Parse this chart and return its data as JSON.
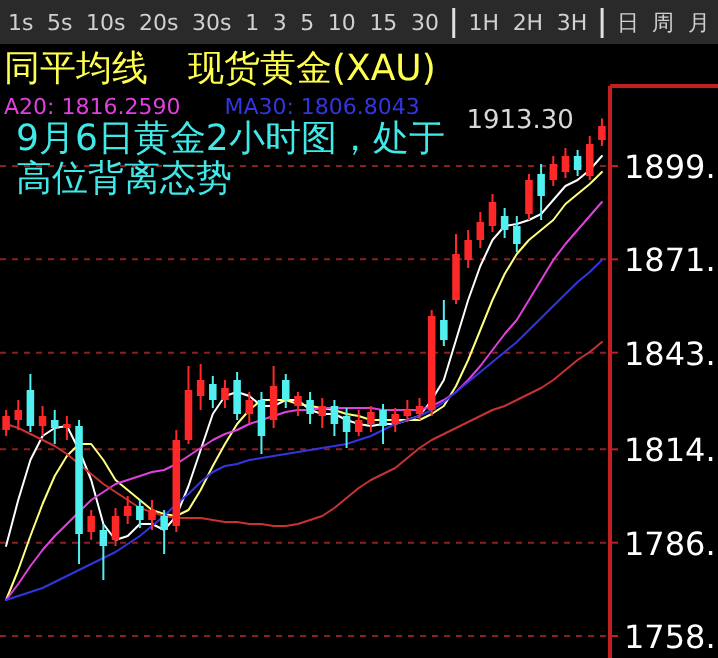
{
  "chart_data": {
    "type": "candlestick",
    "title": "同平均线",
    "subtitle": "现货黄金(XAU)",
    "categories": [
      null,
      null,
      null,
      null,
      null,
      null,
      null,
      null,
      null,
      null,
      null,
      null,
      null,
      null,
      null,
      null,
      null,
      null,
      null,
      null,
      null,
      null,
      null,
      null,
      null,
      null,
      null,
      null,
      null,
      null,
      null,
      null,
      null,
      null,
      null,
      null,
      null,
      null,
      null,
      null,
      null,
      null,
      null,
      null,
      null,
      null,
      null,
      null,
      null,
      null
    ],
    "ohlc": [
      [
        1819.8,
        1825.8,
        1818.0,
        1824.0
      ],
      [
        1822.8,
        1828.8,
        1819.8,
        1825.8
      ],
      [
        1831.8,
        1836.6,
        1819.2,
        1821.0
      ],
      [
        1821.0,
        1827.0,
        1818.0,
        1824.0
      ],
      [
        1822.8,
        1825.8,
        1815.6,
        1820.4
      ],
      [
        1820.4,
        1824.0,
        1816.8,
        1821.6
      ],
      [
        1821.0,
        1822.8,
        1779.6,
        1788.6
      ],
      [
        1789.2,
        1795.8,
        1786.8,
        1794.0
      ],
      [
        1789.8,
        1791.6,
        1774.8,
        1785.0
      ],
      [
        1786.8,
        1796.4,
        1785.0,
        1794.0
      ],
      [
        1794.0,
        1800.0,
        1791.6,
        1797.0
      ],
      [
        1797.0,
        1798.8,
        1790.4,
        1792.8
      ],
      [
        1792.8,
        1798.8,
        1789.8,
        1795.8
      ],
      [
        1794.0,
        1795.8,
        1782.6,
        1789.8
      ],
      [
        1791.0,
        1819.8,
        1789.2,
        1816.8
      ],
      [
        1816.8,
        1839.0,
        1815.6,
        1831.8
      ],
      [
        1830.0,
        1839.6,
        1825.8,
        1834.8
      ],
      [
        1833.6,
        1836.0,
        1826.4,
        1828.8
      ],
      [
        1828.8,
        1834.8,
        1826.4,
        1832.4
      ],
      [
        1834.8,
        1837.2,
        1822.8,
        1824.6
      ],
      [
        1824.6,
        1831.2,
        1821.6,
        1828.8
      ],
      [
        1828.8,
        1831.2,
        1812.6,
        1818.0
      ],
      [
        1822.8,
        1839.0,
        1820.4,
        1833.0
      ],
      [
        1834.8,
        1836.6,
        1826.4,
        1828.8
      ],
      [
        1827.0,
        1831.2,
        1824.0,
        1830.0
      ],
      [
        1828.8,
        1831.2,
        1821.6,
        1824.6
      ],
      [
        1824.0,
        1829.4,
        1820.4,
        1827.0
      ],
      [
        1827.0,
        1828.8,
        1818.0,
        1821.6
      ],
      [
        1824.0,
        1826.4,
        1814.4,
        1819.2
      ],
      [
        1819.2,
        1825.8,
        1818.0,
        1822.8
      ],
      [
        1821.6,
        1827.0,
        1819.2,
        1825.2
      ],
      [
        1825.8,
        1827.6,
        1815.6,
        1821.0
      ],
      [
        1821.6,
        1826.4,
        1819.2,
        1824.6
      ],
      [
        1824.0,
        1828.8,
        1822.2,
        1825.8
      ],
      [
        1824.6,
        1829.4,
        1822.8,
        1827.0
      ],
      [
        1825.8,
        1855.8,
        1824.0,
        1854.0
      ],
      [
        1852.8,
        1858.8,
        1845.0,
        1846.8
      ],
      [
        1858.8,
        1878.6,
        1857.6,
        1872.6
      ],
      [
        1870.8,
        1879.8,
        1868.4,
        1876.8
      ],
      [
        1876.8,
        1885.2,
        1874.4,
        1882.2
      ],
      [
        1881.0,
        1890.6,
        1879.2,
        1888.2
      ],
      [
        1884.0,
        1886.4,
        1877.4,
        1879.8
      ],
      [
        1881.0,
        1884.0,
        1873.2,
        1875.6
      ],
      [
        1884.6,
        1896.6,
        1882.8,
        1894.8
      ],
      [
        1896.6,
        1899.6,
        1882.8,
        1890.0
      ],
      [
        1894.8,
        1902.0,
        1893.0,
        1899.6
      ],
      [
        1897.2,
        1904.4,
        1895.4,
        1902.0
      ],
      [
        1902.0,
        1903.8,
        1896.0,
        1897.8
      ],
      [
        1896.0,
        1908.0,
        1894.8,
        1905.6
      ],
      [
        1906.8,
        1913.3,
        1905.0,
        1911.0
      ]
    ],
    "series": [
      {
        "type": "line",
        "color": "#ffffff",
        "values": [
          1785.0,
          1798.8,
          1810.8,
          1818.0,
          1820.4,
          1821.0,
          1813.8,
          1804.8,
          1791.6,
          1786.8,
          1788.0,
          1791.6,
          1791.6,
          1789.8,
          1794.0,
          1803.0,
          1813.8,
          1824.6,
          1830.0,
          1831.2,
          1830.0,
          1827.0,
          1827.0,
          1828.8,
          1828.8,
          1825.8,
          1824.6,
          1824.6,
          1822.8,
          1821.6,
          1821.0,
          1821.6,
          1821.6,
          1822.8,
          1824.0,
          1828.8,
          1834.8,
          1846.8,
          1858.8,
          1869.0,
          1876.8,
          1881.0,
          1881.6,
          1882.8,
          1884.6,
          1888.8,
          1893.0,
          1894.8,
          1897.8,
          1902.0
        ]
      },
      {
        "type": "line",
        "color": "#ffff80",
        "values": [
          1768.8,
          1777.8,
          1788.0,
          1797.6,
          1806.0,
          1812.0,
          1815.6,
          1815.6,
          1810.8,
          1804.8,
          1801.8,
          1798.8,
          1795.8,
          1794.6,
          1794.0,
          1795.8,
          1801.8,
          1809.0,
          1815.6,
          1821.6,
          1825.8,
          1828.8,
          1828.8,
          1828.8,
          1827.6,
          1827.0,
          1826.4,
          1825.8,
          1824.6,
          1824.0,
          1822.8,
          1822.8,
          1822.8,
          1822.8,
          1822.8,
          1824.6,
          1827.0,
          1833.0,
          1840.8,
          1849.8,
          1858.8,
          1866.6,
          1872.6,
          1876.8,
          1879.8,
          1882.8,
          1887.6,
          1890.6,
          1893.6,
          1897.2
        ]
      },
      {
        "type": "line",
        "name": "A20: 1816.2590",
        "color": "#e040e0",
        "values": [
          1768.8,
          1773.6,
          1779.0,
          1783.8,
          1788.0,
          1791.6,
          1795.2,
          1798.8,
          1801.2,
          1803.6,
          1804.8,
          1806.0,
          1807.2,
          1807.8,
          1809.6,
          1812.0,
          1814.4,
          1816.8,
          1818.6,
          1819.8,
          1821.6,
          1822.8,
          1824.0,
          1825.2,
          1825.8,
          1825.8,
          1826.4,
          1826.4,
          1826.4,
          1826.4,
          1826.4,
          1825.8,
          1825.8,
          1825.8,
          1825.8,
          1827.0,
          1828.8,
          1831.2,
          1834.8,
          1839.0,
          1843.8,
          1848.6,
          1852.8,
          1858.8,
          1864.8,
          1870.8,
          1875.6,
          1879.8,
          1884.0,
          1888.2
        ]
      },
      {
        "type": "line",
        "name": "MA30: 1806.8043",
        "color": "#3434e0",
        "values": [
          1768.8,
          1770.0,
          1771.2,
          1772.4,
          1774.2,
          1776.0,
          1777.8,
          1779.6,
          1781.4,
          1783.2,
          1785.6,
          1788.0,
          1791.0,
          1794.0,
          1797.6,
          1800.6,
          1804.2,
          1807.2,
          1809.0,
          1809.6,
          1810.8,
          1811.4,
          1812.0,
          1812.6,
          1813.2,
          1813.8,
          1814.4,
          1815.0,
          1815.6,
          1816.8,
          1818.0,
          1819.8,
          1821.6,
          1822.8,
          1824.0,
          1825.8,
          1828.2,
          1831.2,
          1834.2,
          1837.2,
          1840.2,
          1843.2,
          1846.2,
          1849.8,
          1853.4,
          1857.0,
          1860.6,
          1864.2,
          1867.2,
          1870.8
        ]
      },
      {
        "type": "line",
        "color": "#c83232",
        "values": [
          1821.6,
          1820.4,
          1818.6,
          1816.8,
          1815.0,
          1812.6,
          1809.6,
          1806.6,
          1803.6,
          1801.2,
          1798.8,
          1796.4,
          1795.2,
          1794.0,
          1793.4,
          1793.4,
          1793.4,
          1792.8,
          1792.2,
          1792.2,
          1791.6,
          1791.6,
          1791.0,
          1791.0,
          1791.6,
          1792.8,
          1794.0,
          1796.4,
          1799.4,
          1802.4,
          1804.8,
          1806.6,
          1808.4,
          1811.4,
          1814.4,
          1816.8,
          1818.6,
          1820.4,
          1822.2,
          1824.0,
          1825.8,
          1827.0,
          1828.8,
          1830.6,
          1832.4,
          1834.8,
          1837.8,
          1840.8,
          1843.2,
          1846.2
        ]
      }
    ],
    "ylim": [
      1751.4,
      1921.8
    ],
    "yticks": [
      {
        "value": 1758,
        "label": "1758."
      },
      {
        "value": 1786,
        "label": "1786."
      },
      {
        "value": 1814,
        "label": "1814."
      },
      {
        "value": 1843,
        "label": "1843."
      },
      {
        "value": 1871,
        "label": "1871."
      },
      {
        "value": 1899,
        "label": "1899."
      }
    ],
    "grid": "y",
    "legend": "top left",
    "tick_labels": "y",
    "annotations": [
      "9月6日黄金2小时图，处于高位背离态势",
      "1913.30",
      "1s",
      "5s",
      "10s",
      "20s",
      "30s",
      "1",
      "3",
      "5",
      "10",
      "15",
      "30",
      "1H",
      "2H",
      "3H",
      "日",
      "周",
      "月"
    ]
  }
}
